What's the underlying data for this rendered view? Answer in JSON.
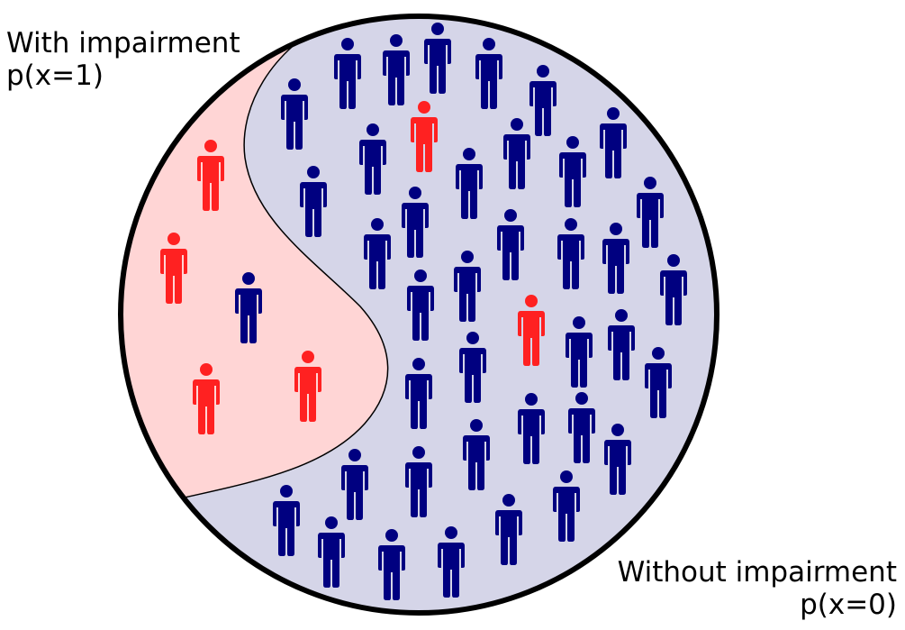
{
  "labels": {
    "with_title": "With impairment",
    "with_prob": "p(x=1)",
    "without_title": "Without impairment",
    "without_prob": "p(x=0)"
  },
  "colors": {
    "impaired_person": "#ff2121",
    "unimpaired_person": "#000080",
    "impaired_region": "#ffd5d5",
    "unimpaired_region": "#d5d5e8",
    "circle_border": "#000000"
  },
  "icons": {
    "person": "person-icon"
  },
  "counts": {
    "impaired_in_impaired_region": 4,
    "unimpaired_in_impaired_region": 1,
    "impaired_in_unimpaired_region": 2
  }
}
